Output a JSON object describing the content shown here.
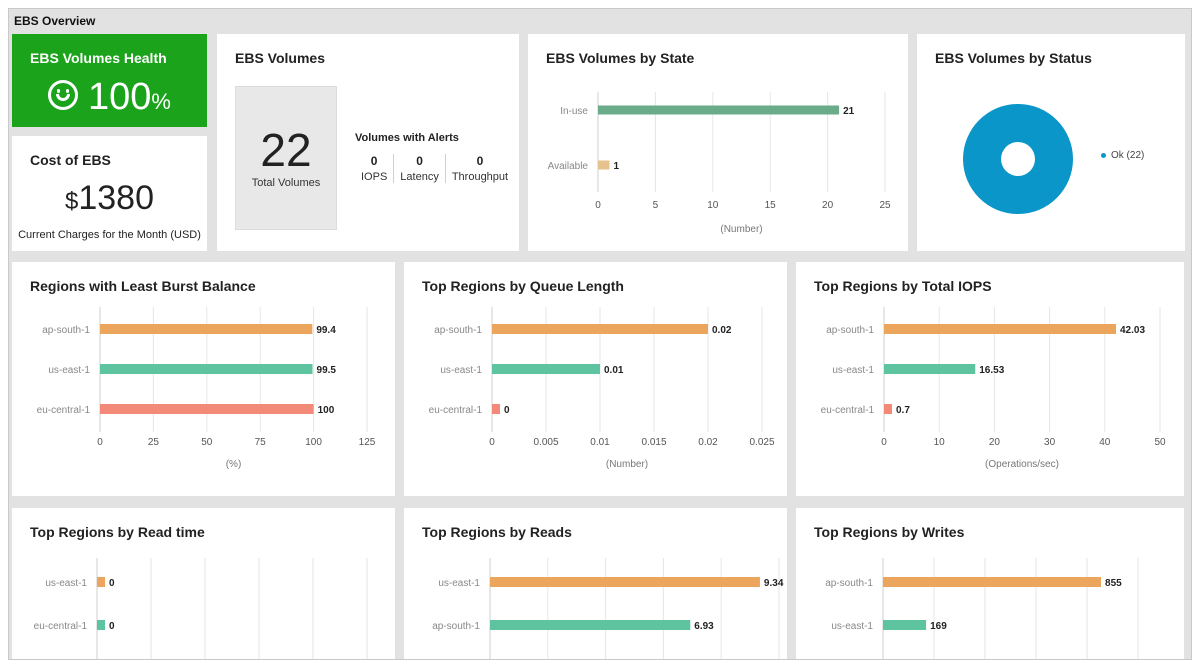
{
  "header": {
    "title": "EBS Overview"
  },
  "health": {
    "title": "EBS Volumes Health",
    "value": "100",
    "unit": "%",
    "icon": "smile-icon"
  },
  "cost": {
    "title": "Cost of EBS",
    "currency": "$",
    "value": "1380",
    "subtitle": "Current Charges for the Month (USD)"
  },
  "volumes": {
    "title": "EBS Volumes",
    "total": "22",
    "total_label": "Total Volumes",
    "alerts_title": "Volumes with Alerts",
    "alerts": [
      {
        "value": "0",
        "label": "IOPS"
      },
      {
        "value": "0",
        "label": "Latency"
      },
      {
        "value": "0",
        "label": "Throughput"
      }
    ]
  },
  "by_status": {
    "title": "EBS Volumes by Status",
    "legend": "Ok (22)",
    "color": "#0a96c8"
  },
  "charts": [
    {
      "id": "state",
      "title": "EBS Volumes by State",
      "type": "bar",
      "categories": [
        "In-use",
        "Available"
      ],
      "values": [
        21,
        1
      ],
      "value_labels": [
        "21",
        "1"
      ],
      "colors": [
        "#6aab8a",
        "#e6c28e"
      ],
      "xlim": [
        0,
        25
      ],
      "ticks": [
        "0",
        "5",
        "10",
        "15",
        "20",
        "25"
      ],
      "xlabel": "(Number)"
    },
    {
      "id": "burst",
      "title": "Regions with Least Burst Balance",
      "type": "bar",
      "categories": [
        "ap-south-1",
        "us-east-1",
        "eu-central-1"
      ],
      "values": [
        99.4,
        99.5,
        100
      ],
      "value_labels": [
        "99.4",
        "99.5",
        "100"
      ],
      "colors": [
        "#eba55d",
        "#5ec4a0",
        "#f38a78"
      ],
      "xlim": [
        0,
        125
      ],
      "ticks": [
        "0",
        "25",
        "50",
        "75",
        "100",
        "125"
      ],
      "xlabel": "(%)"
    },
    {
      "id": "queue",
      "title": "Top Regions by Queue Length",
      "type": "bar",
      "categories": [
        "ap-south-1",
        "us-east-1",
        "eu-central-1"
      ],
      "values": [
        0.02,
        0.01,
        0
      ],
      "value_labels": [
        "0.02",
        "0.01",
        "0"
      ],
      "colors": [
        "#eba55d",
        "#5ec4a0",
        "#f38a78"
      ],
      "xlim": [
        0,
        0.025
      ],
      "ticks": [
        "0",
        "0.005",
        "0.01",
        "0.015",
        "0.02",
        "0.025"
      ],
      "xlabel": "(Number)"
    },
    {
      "id": "iops",
      "title": "Top Regions by Total IOPS",
      "type": "bar",
      "categories": [
        "ap-south-1",
        "us-east-1",
        "eu-central-1"
      ],
      "values": [
        42.03,
        16.53,
        0.7
      ],
      "value_labels": [
        "42.03",
        "16.53",
        "0.7"
      ],
      "colors": [
        "#eba55d",
        "#5ec4a0",
        "#f38a78"
      ],
      "xlim": [
        0,
        50
      ],
      "ticks": [
        "0",
        "10",
        "20",
        "30",
        "40",
        "50"
      ],
      "xlabel": "(Operations/sec)"
    },
    {
      "id": "readtime",
      "title": "Top Regions by Read time",
      "type": "bar",
      "categories": [
        "us-east-1",
        "eu-central-1"
      ],
      "values": [
        0,
        0
      ],
      "value_labels": [
        "0",
        "0"
      ],
      "colors": [
        "#eba55d",
        "#5ec4a0"
      ],
      "xlim": [
        0,
        1
      ],
      "ticks": [],
      "xlabel": ""
    },
    {
      "id": "reads",
      "title": "Top Regions by Reads",
      "type": "bar",
      "categories": [
        "us-east-1",
        "ap-south-1"
      ],
      "values": [
        9.34,
        6.93
      ],
      "value_labels": [
        "9.34",
        "6.93"
      ],
      "colors": [
        "#eba55d",
        "#5ec4a0"
      ],
      "xlim": [
        0,
        10
      ],
      "ticks": [],
      "xlabel": ""
    },
    {
      "id": "writes",
      "title": "Top Regions by Writes",
      "type": "bar",
      "categories": [
        "ap-south-1",
        "us-east-1"
      ],
      "values": [
        855,
        169
      ],
      "value_labels": [
        "855",
        "169"
      ],
      "colors": [
        "#eba55d",
        "#5ec4a0"
      ],
      "xlim": [
        0,
        1000
      ],
      "ticks": [],
      "xlabel": ""
    }
  ]
}
